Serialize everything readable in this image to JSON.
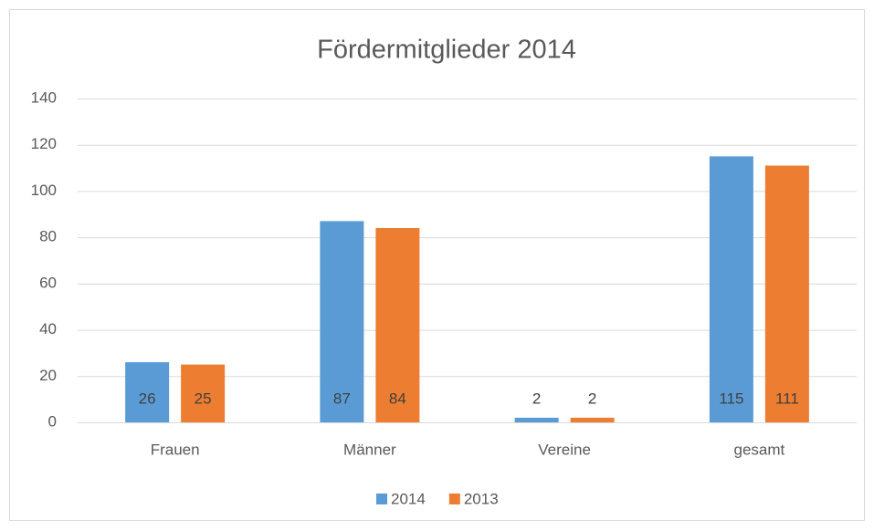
{
  "chart_data": {
    "type": "bar",
    "title": "Fördermitglieder 2014",
    "categories": [
      "Frauen",
      "Männer",
      "Vereine",
      "gesamt"
    ],
    "series": [
      {
        "name": "2014",
        "color": "#5b9bd5",
        "values": [
          26,
          87,
          2,
          115
        ]
      },
      {
        "name": "2013",
        "color": "#ed7d31",
        "values": [
          25,
          84,
          2,
          111
        ]
      }
    ],
    "ylim": [
      0,
      140
    ],
    "yticks": [
      0,
      20,
      40,
      60,
      80,
      100,
      120,
      140
    ],
    "grid": true,
    "legend": "bottom"
  }
}
